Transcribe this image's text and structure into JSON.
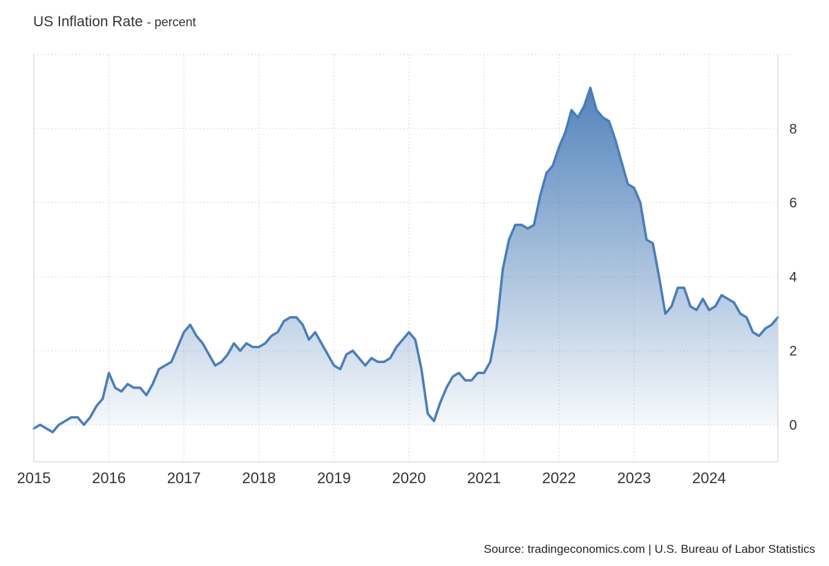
{
  "chart_data": {
    "type": "area",
    "title": "US Inflation Rate",
    "subtitle": "- percent",
    "source": "Source: tradingeconomics.com | U.S. Bureau of Labor Statistics",
    "series": [
      {
        "values": [
          -0.1,
          0.0,
          -0.1,
          -0.2,
          0.0,
          0.1,
          0.2,
          0.2,
          0.0,
          0.2,
          0.5,
          0.7,
          1.4,
          1.0,
          0.9,
          1.1,
          1.0,
          1.0,
          0.8,
          1.1,
          1.5,
          1.6,
          1.7,
          2.1,
          2.5,
          2.7,
          2.4,
          2.2,
          1.9,
          1.6,
          1.7,
          1.9,
          2.2,
          2.0,
          2.2,
          2.1,
          2.1,
          2.2,
          2.4,
          2.5,
          2.8,
          2.9,
          2.9,
          2.7,
          2.3,
          2.5,
          2.2,
          1.9,
          1.6,
          1.5,
          1.9,
          2.0,
          1.8,
          1.6,
          1.8,
          1.7,
          1.7,
          1.8,
          2.1,
          2.3,
          2.5,
          2.3,
          1.5,
          0.3,
          0.1,
          0.6,
          1.0,
          1.3,
          1.4,
          1.2,
          1.2,
          1.4,
          1.4,
          1.7,
          2.6,
          4.2,
          5.0,
          5.4,
          5.4,
          5.3,
          5.4,
          6.2,
          6.8,
          7.0,
          7.5,
          7.9,
          8.5,
          8.3,
          8.6,
          9.1,
          8.5,
          8.3,
          8.2,
          7.7,
          7.1,
          6.5,
          6.4,
          6.0,
          5.0,
          4.9,
          4.0,
          3.0,
          3.2,
          3.7,
          3.7,
          3.2,
          3.1,
          3.4,
          3.1,
          3.2,
          3.5,
          3.4,
          3.3,
          3.0,
          2.9,
          2.5,
          2.4,
          2.6,
          2.7,
          2.9
        ],
        "start": "2015-01",
        "frequency": "monthly",
        "color": "#4a7db8"
      }
    ],
    "x_ticks": [
      "2015",
      "2016",
      "2017",
      "2018",
      "2019",
      "2020",
      "2021",
      "2022",
      "2023",
      "2024"
    ],
    "y_ticks": [
      "0",
      "2",
      "4",
      "6",
      "8"
    ],
    "ylim": [
      -1,
      10
    ],
    "y_axis_position": "right",
    "grid": true,
    "fill_gradient": [
      "#4a7db8",
      "#ffffff"
    ]
  }
}
